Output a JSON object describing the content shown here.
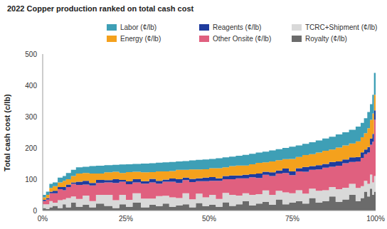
{
  "chart_data": {
    "type": "area",
    "line_style": "step",
    "stacked": true,
    "title": "2022 Copper production ranked on total cash cost",
    "y_label": "Total cash cost (c/lb)",
    "grid": false,
    "legend": "top",
    "bins": [
      0,
      1,
      2,
      3,
      4.5,
      6,
      7,
      8.5,
      10,
      12,
      14,
      16,
      18.5,
      21,
      23,
      25,
      27,
      29.5,
      32,
      34,
      36,
      38,
      40,
      42,
      44,
      46,
      48,
      50,
      52,
      54,
      56,
      58,
      60,
      62,
      64,
      66,
      68,
      70,
      72,
      74,
      76,
      78,
      80,
      82,
      84,
      86,
      88,
      90,
      92,
      94,
      95.5,
      96.5,
      97.5,
      98.3,
      99,
      99.5,
      100
    ],
    "xlim": [
      0,
      100
    ],
    "xticks": [
      {
        "value": 0,
        "label": "0%"
      },
      {
        "value": 25,
        "label": "25%"
      },
      {
        "value": 50,
        "label": "50%"
      },
      {
        "value": 75,
        "label": "75%"
      },
      {
        "value": 100,
        "label": "100%"
      }
    ],
    "ylim": [
      0,
      500
    ],
    "yticks": [
      0,
      100,
      200,
      300,
      400,
      500
    ],
    "series": [
      {
        "name": "Labor (¢/lb)",
        "color": "#3e9fb6",
        "values": [
          8,
          10,
          13,
          12,
          15,
          15,
          20,
          20,
          20,
          20,
          24,
          25,
          23,
          22,
          27,
          25,
          25,
          28,
          28,
          28,
          29,
          29,
          27,
          28,
          29,
          31,
          31,
          30,
          32,
          32,
          30,
          31,
          34,
          33,
          33,
          34,
          35,
          35,
          36,
          39,
          37,
          36,
          38,
          39,
          39,
          41,
          42,
          42,
          44,
          47,
          46,
          48,
          52,
          50,
          60,
          70
        ]
      },
      {
        "name": "Energy (¢/lb)",
        "color": "#f4a11d",
        "values": [
          8,
          10,
          12,
          15,
          15,
          20,
          17,
          20,
          26,
          25,
          30,
          20,
          25,
          24,
          22,
          30,
          24,
          28,
          22,
          30,
          26,
          24,
          30,
          25,
          30,
          28,
          27,
          28,
          32,
          28,
          30,
          32,
          30,
          32,
          34,
          30,
          35,
          33,
          30,
          40,
          36,
          38,
          38,
          40,
          42,
          40,
          44,
          45,
          44,
          50,
          48,
          52,
          60,
          60,
          65,
          50
        ]
      },
      {
        "name": "Reagents (¢/lb)",
        "color": "#1f3c9e",
        "values": [
          4,
          5,
          5,
          8,
          7,
          10,
          8,
          5,
          10,
          12,
          8,
          10,
          7,
          12,
          6,
          9,
          10,
          8,
          11,
          9,
          7,
          10,
          12,
          8,
          10,
          9,
          11,
          12,
          8,
          10,
          12,
          9,
          11,
          10,
          14,
          10,
          12,
          10,
          14,
          12,
          10,
          15,
          12,
          14,
          12,
          15,
          14,
          12,
          15,
          14,
          18,
          15,
          18,
          20,
          25,
          30
        ]
      },
      {
        "name": "Other Onsite (¢/lb)",
        "color": "#e0607f",
        "values": [
          10,
          15,
          25,
          30,
          35,
          30,
          35,
          40,
          45,
          35,
          50,
          38,
          40,
          55,
          42,
          50,
          35,
          48,
          52,
          40,
          45,
          50,
          48,
          42,
          55,
          40,
          52,
          45,
          58,
          44,
          50,
          55,
          48,
          56,
          52,
          50,
          60,
          55,
          62,
          58,
          60,
          70,
          60,
          68,
          72,
          65,
          75,
          78,
          70,
          85,
          90,
          85,
          100,
          95,
          130,
          180
        ]
      },
      {
        "name": "TCRC+Shipment (¢/lb)",
        "color": "#d9d9d9",
        "values": [
          12,
          15,
          20,
          10,
          25,
          15,
          30,
          20,
          25,
          30,
          20,
          28,
          35,
          25,
          30,
          22,
          30,
          28,
          20,
          32,
          25,
          30,
          24,
          35,
          26,
          30,
          28,
          32,
          25,
          30,
          35,
          28,
          25,
          34,
          30,
          36,
          32,
          28,
          38,
          30,
          35,
          32,
          30,
          38,
          35,
          30,
          40,
          38,
          35,
          42,
          38,
          35,
          40,
          45,
          40,
          50
        ]
      },
      {
        "name": "Royalty (¢/lb)",
        "color": "#6b6b6b",
        "values": [
          8,
          5,
          10,
          15,
          8,
          20,
          10,
          25,
          12,
          18,
          10,
          22,
          15,
          8,
          20,
          12,
          25,
          10,
          18,
          14,
          22,
          12,
          16,
          20,
          10,
          24,
          14,
          18,
          12,
          26,
          15,
          20,
          30,
          16,
          22,
          28,
          18,
          35,
          20,
          25,
          30,
          22,
          40,
          25,
          30,
          45,
          28,
          35,
          50,
          30,
          40,
          60,
          45,
          70,
          50,
          60
        ]
      }
    ]
  }
}
